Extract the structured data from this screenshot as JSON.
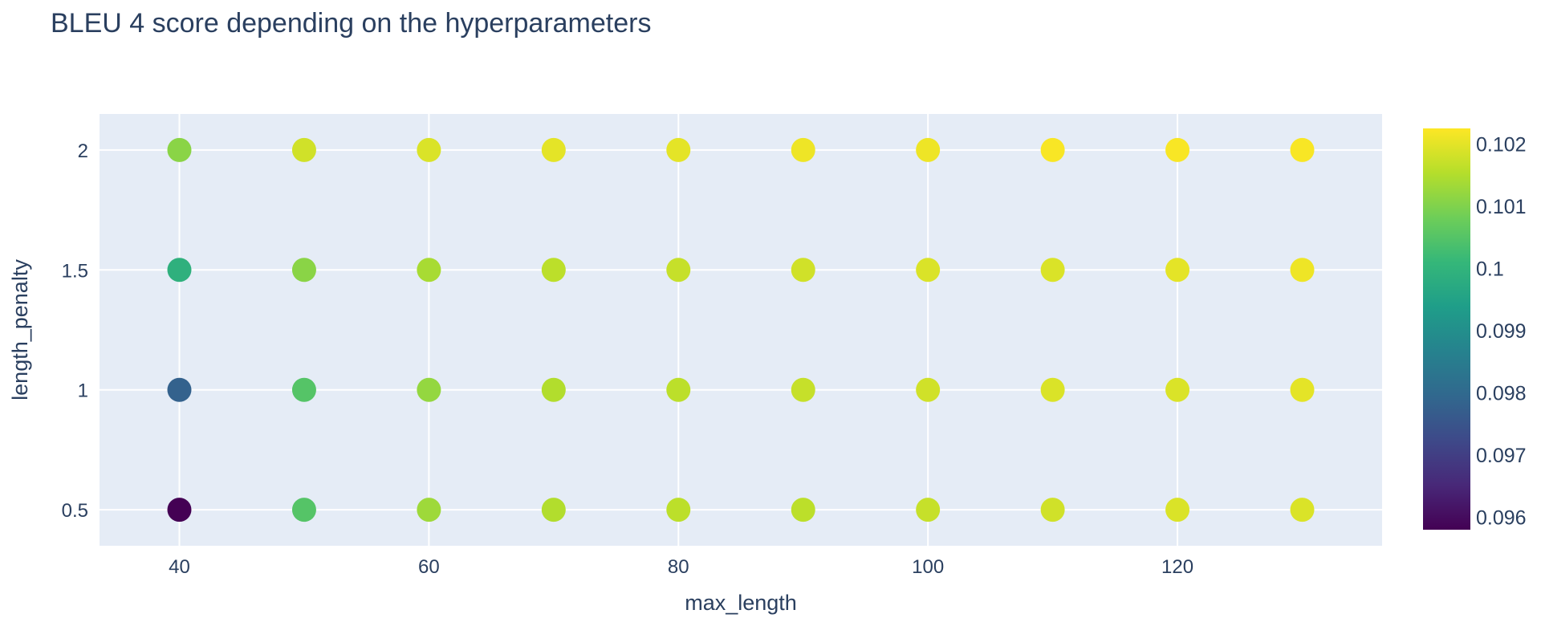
{
  "chart_data": {
    "type": "scatter",
    "title": "BLEU 4 score depending on the hyperparameters",
    "xlabel": "max_length",
    "ylabel": "length_penalty",
    "xlim": [
      33.6,
      136.4
    ],
    "ylim": [
      0.35,
      2.15
    ],
    "x_ticks": [
      40,
      60,
      80,
      100,
      120
    ],
    "x_tick_labels": [
      "40",
      "60",
      "80",
      "100",
      "120"
    ],
    "y_ticks": [
      0.5,
      1,
      1.5,
      2
    ],
    "y_tick_labels": [
      "0.5",
      "1",
      "1.5",
      "2"
    ],
    "grid": true,
    "plot_background": "#e5ecf6",
    "colorbar": {
      "colorscale": "Viridis",
      "cmin": 0.0958,
      "cmax": 0.10225,
      "ticks": [
        0.096,
        0.097,
        0.098,
        0.099,
        0.1,
        0.101,
        0.102
      ],
      "tick_labels": [
        "0.096",
        "0.097",
        "0.098",
        "0.099",
        "0.1",
        "0.101",
        "0.102"
      ]
    },
    "points": [
      {
        "x": 40,
        "y": 0.5,
        "score": 0.0958
      },
      {
        "x": 40,
        "y": 1,
        "score": 0.0978
      },
      {
        "x": 40,
        "y": 1.5,
        "score": 0.0999
      },
      {
        "x": 40,
        "y": 2,
        "score": 0.1011
      },
      {
        "x": 50,
        "y": 0.5,
        "score": 0.1005
      },
      {
        "x": 50,
        "y": 1,
        "score": 0.1005
      },
      {
        "x": 50,
        "y": 1.5,
        "score": 0.1011
      },
      {
        "x": 50,
        "y": 2,
        "score": 0.1018
      },
      {
        "x": 60,
        "y": 0.5,
        "score": 0.1013
      },
      {
        "x": 60,
        "y": 1,
        "score": 0.1012
      },
      {
        "x": 60,
        "y": 1.5,
        "score": 0.1014
      },
      {
        "x": 60,
        "y": 2,
        "score": 0.1019
      },
      {
        "x": 70,
        "y": 0.5,
        "score": 0.1015
      },
      {
        "x": 70,
        "y": 1,
        "score": 0.1015
      },
      {
        "x": 70,
        "y": 1.5,
        "score": 0.1016
      },
      {
        "x": 70,
        "y": 2,
        "score": 0.102
      },
      {
        "x": 80,
        "y": 0.5,
        "score": 0.1016
      },
      {
        "x": 80,
        "y": 1,
        "score": 0.1016
      },
      {
        "x": 80,
        "y": 1.5,
        "score": 0.1017
      },
      {
        "x": 80,
        "y": 2,
        "score": 0.102
      },
      {
        "x": 90,
        "y": 0.5,
        "score": 0.1016
      },
      {
        "x": 90,
        "y": 1,
        "score": 0.1017
      },
      {
        "x": 90,
        "y": 1.5,
        "score": 0.1018
      },
      {
        "x": 90,
        "y": 2,
        "score": 0.1021
      },
      {
        "x": 100,
        "y": 0.5,
        "score": 0.1017
      },
      {
        "x": 100,
        "y": 1,
        "score": 0.1018
      },
      {
        "x": 100,
        "y": 1.5,
        "score": 0.1019
      },
      {
        "x": 100,
        "y": 2,
        "score": 0.1021
      },
      {
        "x": 110,
        "y": 0.5,
        "score": 0.1018
      },
      {
        "x": 110,
        "y": 1,
        "score": 0.1019
      },
      {
        "x": 110,
        "y": 1.5,
        "score": 0.1019
      },
      {
        "x": 110,
        "y": 2,
        "score": 0.1022
      },
      {
        "x": 120,
        "y": 0.5,
        "score": 0.1019
      },
      {
        "x": 120,
        "y": 1,
        "score": 0.1019
      },
      {
        "x": 120,
        "y": 1.5,
        "score": 0.102
      },
      {
        "x": 120,
        "y": 2,
        "score": 0.1022
      },
      {
        "x": 130,
        "y": 0.5,
        "score": 0.1019
      },
      {
        "x": 130,
        "y": 1,
        "score": 0.102
      },
      {
        "x": 130,
        "y": 1.5,
        "score": 0.1021
      },
      {
        "x": 130,
        "y": 2,
        "score": 0.1022
      }
    ]
  }
}
